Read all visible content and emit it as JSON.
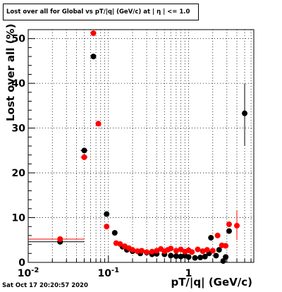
{
  "title": "Lost over all for Global vs pT/|q| (GeV/c) at | η | <= 1.0",
  "timestamp": "Sat Oct 17 20:20:57 2020",
  "colors": {
    "series_black": "#000000",
    "series_red": "#ff0000"
  },
  "chart_data": {
    "type": "scatter",
    "title": "Lost over all for Global vs pT/|q| (GeV/c) at | η | <= 1.0",
    "xlabel": "pT/|q| (GeV/c)",
    "ylabel": "Lost over all (%)",
    "xscale": "log",
    "xlim": [
      0.01,
      6.5
    ],
    "ylim": [
      0,
      52
    ],
    "x_ticks": [
      {
        "v": 0.01,
        "label": "10",
        "sup": "-2"
      },
      {
        "v": 0.1,
        "label": "10",
        "sup": "-1"
      },
      {
        "v": 1,
        "label": "1",
        "sup": ""
      }
    ],
    "y_ticks": [
      0,
      10,
      20,
      30,
      40,
      50
    ],
    "grid": true,
    "series": [
      {
        "color": "#000000",
        "points": [
          {
            "x": 0.025,
            "y": 4.6,
            "xerr": [
              0.01,
              0.05
            ]
          },
          {
            "x": 0.05,
            "y": 25.0,
            "xerr": [
              0.045,
              0.055
            ]
          },
          {
            "x": 0.065,
            "y": 46.0
          },
          {
            "x": 0.095,
            "y": 10.8,
            "xerr": [
              0.09,
              0.1
            ]
          },
          {
            "x": 0.12,
            "y": 6.6
          },
          {
            "x": 0.15,
            "y": 3.5
          },
          {
            "x": 0.17,
            "y": 2.8
          },
          {
            "x": 0.2,
            "y": 2.5
          },
          {
            "x": 0.25,
            "y": 2.0
          },
          {
            "x": 0.3,
            "y": 2.2
          },
          {
            "x": 0.35,
            "y": 1.8
          },
          {
            "x": 0.4,
            "y": 1.9
          },
          {
            "x": 0.5,
            "y": 1.8
          },
          {
            "x": 0.6,
            "y": 1.5
          },
          {
            "x": 0.7,
            "y": 1.4
          },
          {
            "x": 0.8,
            "y": 1.3
          },
          {
            "x": 0.9,
            "y": 1.5
          },
          {
            "x": 1.0,
            "y": 1.2
          },
          {
            "x": 1.2,
            "y": 1.0
          },
          {
            "x": 1.4,
            "y": 1.1
          },
          {
            "x": 1.6,
            "y": 1.3
          },
          {
            "x": 1.8,
            "y": 2.0
          },
          {
            "x": 1.9,
            "y": 5.5
          },
          {
            "x": 2.2,
            "y": 1.5
          },
          {
            "x": 2.4,
            "y": 2.8
          },
          {
            "x": 2.7,
            "y": 0.3
          },
          {
            "x": 2.9,
            "y": 1.2
          },
          {
            "x": 3.2,
            "y": 7.0
          },
          {
            "x": 5.0,
            "y": 33.3,
            "yerr": [
              26.0,
              40.0
            ]
          }
        ]
      },
      {
        "color": "#ff0000",
        "points": [
          {
            "x": 0.025,
            "y": 5.2,
            "xerr": [
              0.01,
              0.05
            ]
          },
          {
            "x": 0.05,
            "y": 23.5,
            "xerr": [
              0.045,
              0.055
            ]
          },
          {
            "x": 0.065,
            "y": 51.2
          },
          {
            "x": 0.075,
            "y": 31.0
          },
          {
            "x": 0.095,
            "y": 8.0
          },
          {
            "x": 0.125,
            "y": 4.3
          },
          {
            "x": 0.14,
            "y": 4.1
          },
          {
            "x": 0.16,
            "y": 3.6
          },
          {
            "x": 0.18,
            "y": 3.2
          },
          {
            "x": 0.2,
            "y": 2.8
          },
          {
            "x": 0.23,
            "y": 2.5
          },
          {
            "x": 0.26,
            "y": 2.6
          },
          {
            "x": 0.3,
            "y": 2.3
          },
          {
            "x": 0.35,
            "y": 2.4
          },
          {
            "x": 0.4,
            "y": 2.6
          },
          {
            "x": 0.45,
            "y": 3.0
          },
          {
            "x": 0.5,
            "y": 2.5
          },
          {
            "x": 0.55,
            "y": 2.8
          },
          {
            "x": 0.6,
            "y": 3.1
          },
          {
            "x": 0.7,
            "y": 2.6
          },
          {
            "x": 0.8,
            "y": 2.9
          },
          {
            "x": 0.9,
            "y": 2.4
          },
          {
            "x": 1.0,
            "y": 2.7
          },
          {
            "x": 1.1,
            "y": 2.3
          },
          {
            "x": 1.3,
            "y": 2.9
          },
          {
            "x": 1.5,
            "y": 2.5
          },
          {
            "x": 1.7,
            "y": 2.8
          },
          {
            "x": 2.0,
            "y": 2.6
          },
          {
            "x": 2.3,
            "y": 6.0
          },
          {
            "x": 2.6,
            "y": 3.8
          },
          {
            "x": 2.9,
            "y": 3.7
          },
          {
            "x": 3.2,
            "y": 8.5
          },
          {
            "x": 4.0,
            "y": 8.2,
            "yerr": [
              5.0,
              11.5
            ]
          }
        ]
      }
    ]
  }
}
